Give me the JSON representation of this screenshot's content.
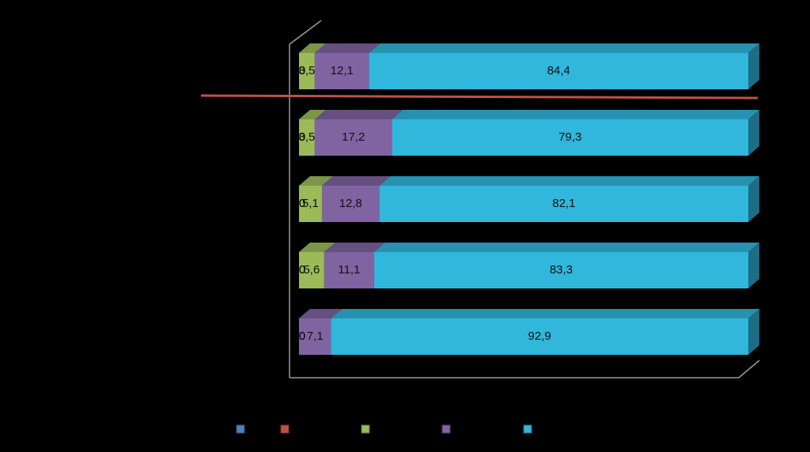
{
  "chart_data": {
    "type": "stacked-bar-3d",
    "xlim": [
      0,
      100
    ],
    "series": [
      {
        "color": "#4f81bd",
        "values": [
          0,
          0,
          0,
          0,
          0
        ]
      },
      {
        "color": "#c0504d",
        "values": [
          0,
          0,
          0,
          0,
          0
        ]
      },
      {
        "color": "#9bbb59",
        "values": [
          3.5,
          3.5,
          5.1,
          5.6,
          0
        ],
        "value_labels": [
          "3,5",
          "3,5",
          "5,1",
          "5,6",
          "0"
        ]
      },
      {
        "color": "#8064a2",
        "values": [
          12.1,
          17.2,
          12.8,
          11.1,
          7.1
        ],
        "value_labels": [
          "12,1",
          "17,2",
          "12,8",
          "11,1",
          "7,1"
        ]
      },
      {
        "color": "#31b6dc",
        "values": [
          84.4,
          79.3,
          82.1,
          83.3,
          92.9
        ],
        "value_labels": [
          "84,4",
          "79,3",
          "82,1",
          "83,3",
          "92,9"
        ]
      }
    ]
  }
}
